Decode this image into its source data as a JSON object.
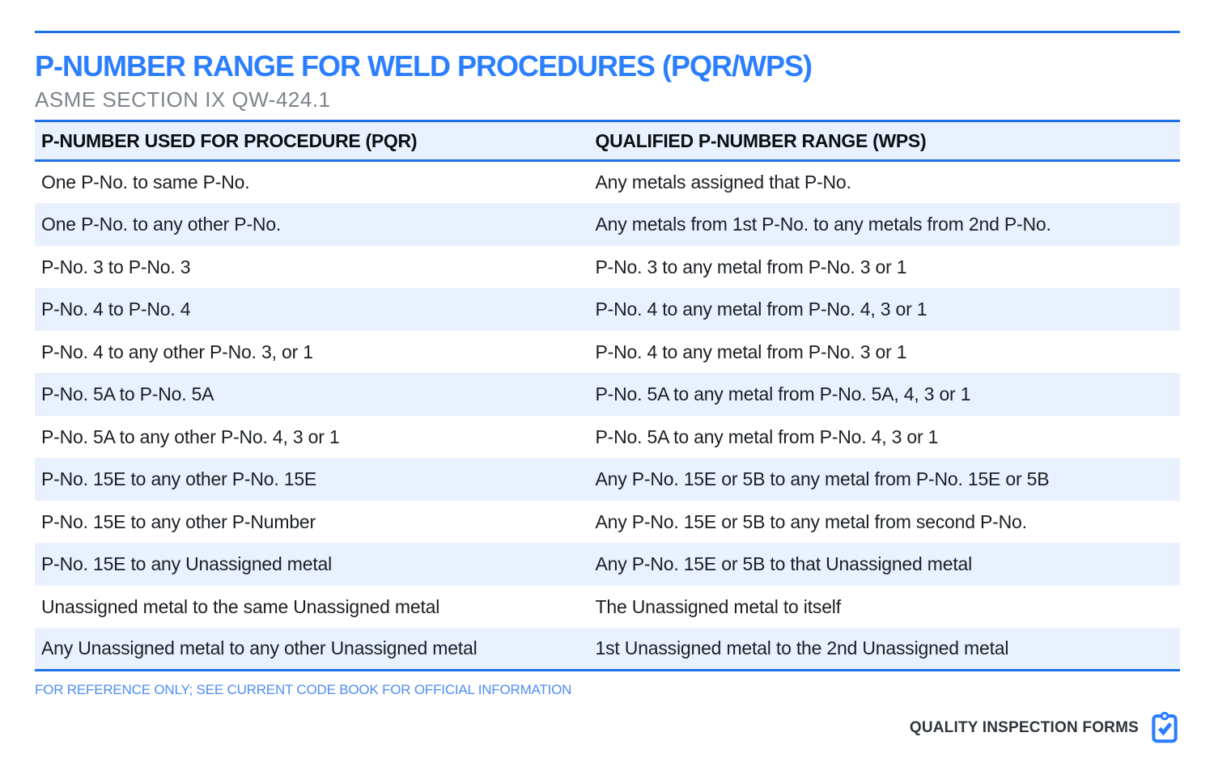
{
  "page": {
    "title": "P-NUMBER RANGE FOR WELD PROCEDURES (PQR/WPS)",
    "subtitle": "ASME SECTION IX QW-424.1"
  },
  "table": {
    "columns": [
      "P-NUMBER USED FOR PROCEDURE (PQR)",
      "QUALIFIED P-NUMBER RANGE (WPS)"
    ],
    "rows": [
      [
        "One P-No. to same P-No.",
        "Any metals assigned that P-No."
      ],
      [
        "One P-No. to any other P-No.",
        "Any metals from 1st P-No. to any metals from 2nd P-No."
      ],
      [
        "P-No. 3 to P-No. 3",
        "P-No. 3 to any metal from P-No. 3 or 1"
      ],
      [
        "P-No. 4 to P-No. 4",
        "P-No. 4 to any metal from P-No. 4, 3 or 1"
      ],
      [
        "P-No. 4 to any other P-No. 3, or 1",
        "P-No. 4 to any metal from P-No. 3 or 1"
      ],
      [
        "P-No. 5A to P-No. 5A",
        "P-No. 5A to any metal from P-No. 5A, 4, 3 or 1"
      ],
      [
        "P-No. 5A to any other P-No. 4, 3 or 1",
        "P-No. 5A to any metal from P-No. 4, 3 or 1"
      ],
      [
        "P-No. 15E to any other P-No. 15E",
        "Any P-No. 15E or 5B to any metal from P-No. 15E or 5B"
      ],
      [
        "P-No. 15E to any other P-Number",
        "Any P-No. 15E or 5B to any metal from second P-No."
      ],
      [
        "P-No. 15E to any Unassigned metal",
        "Any P-No. 15E or 5B to that Unassigned metal"
      ],
      [
        "Unassigned metal to the same Unassigned metal",
        "The Unassigned metal to itself"
      ],
      [
        "Any Unassigned metal to any other Unassigned metal",
        "1st Unassigned metal to the 2nd Unassigned metal"
      ]
    ]
  },
  "footer": {
    "note": "FOR REFERENCE ONLY; SEE CURRENT CODE BOOK FOR OFFICIAL INFORMATION",
    "brand": "QUALITY INSPECTION FORMS",
    "brand_icon": "clipboard-check-icon"
  },
  "colors": {
    "accent_blue": "#2b7fff",
    "border_blue": "#1d70e8",
    "row_alt_background": "#e8f1fd",
    "subtitle_gray": "#7d848d",
    "footer_note_blue": "#4d8df2",
    "brand_text": "#2f353c"
  }
}
